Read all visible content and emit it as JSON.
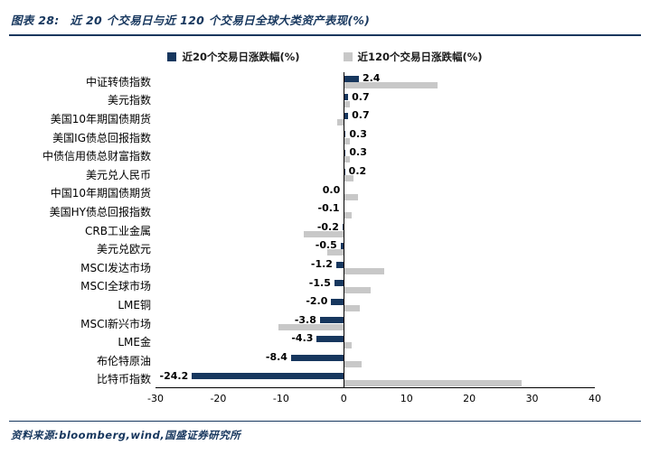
{
  "header": {
    "tag": "图表 28:",
    "title": "近 20 个交易日与近 120 个交易日全球大类资产表现(%)"
  },
  "colors": {
    "navy": "#17375E",
    "bar_blue": "#17375E",
    "bar_gray": "#C8C8C8",
    "axis": "#000000"
  },
  "legend": [
    {
      "label": "近20个交易日涨跌幅(%)",
      "color": "#17375E"
    },
    {
      "label": "近120个交易日涨跌幅(%)",
      "color": "#C8C8C8"
    }
  ],
  "chart_data": {
    "type": "bar",
    "orientation": "horizontal",
    "title": "近 20 个交易日与近 120 个交易日全球大类资产表现(%)",
    "xlabel": "",
    "ylabel": "",
    "xlim": [
      -30,
      40
    ],
    "xticks": [
      -30,
      -20,
      -10,
      0,
      10,
      20,
      30,
      40
    ],
    "grid": false,
    "legend_position": "top",
    "categories": [
      "中证转债指数",
      "美元指数",
      "美国10年期国债期货",
      "美国IG债总回报指数",
      "中债信用债总财富指数",
      "美元兑人民币",
      "中国10年期国债期货",
      "美国HY债总回报指数",
      "CRB工业金属",
      "美元兑欧元",
      "MSCI发达市场",
      "MSCI全球市场",
      "LME铜",
      "MSCI新兴市场",
      "LME金",
      "布伦特原油",
      "比特币指数"
    ],
    "series": [
      {
        "name": "近20个交易日涨跌幅(%)",
        "color": "#17375E",
        "values": [
          2.4,
          0.7,
          0.7,
          0.3,
          0.3,
          0.2,
          0.0,
          -0.1,
          -0.2,
          -0.5,
          -1.2,
          -1.5,
          -2.0,
          -3.8,
          -4.3,
          -8.4,
          -24.2
        ]
      },
      {
        "name": "近120个交易日涨跌幅(%)",
        "color": "#C8C8C8",
        "values": [
          14.9,
          1.0,
          -1.0,
          0.9,
          1.0,
          1.6,
          2.2,
          1.3,
          -6.4,
          -2.6,
          6.4,
          4.3,
          2.5,
          -10.4,
          1.2,
          2.9,
          28.4
        ]
      }
    ],
    "value_labels": [
      "2.4",
      "0.7",
      "0.7",
      "0.3",
      "0.3",
      "0.2",
      "0.0",
      "-0.1",
      "-0.2",
      "-0.5",
      "-1.2",
      "-1.5",
      "-2.0",
      "-3.8",
      "-4.3",
      "-8.4",
      "-24.2"
    ]
  },
  "footer": {
    "source": "资料来源:bloomberg,wind,国盛证券研究所"
  }
}
